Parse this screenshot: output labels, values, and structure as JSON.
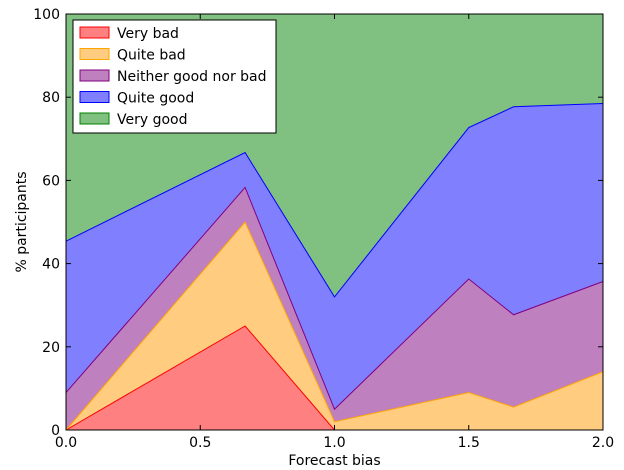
{
  "chart_data": {
    "type": "area",
    "stacked": true,
    "title": "",
    "xlabel": "Forecast bias",
    "ylabel": "% participants",
    "xlim": [
      0.0,
      2.0
    ],
    "ylim": [
      0,
      100
    ],
    "x": [
      0.0,
      0.667,
      1.0,
      1.5,
      1.667,
      2.0
    ],
    "xticks": [
      "0.0",
      "0.5",
      "1.0",
      "1.5",
      "2.0"
    ],
    "yticks": [
      "0",
      "20",
      "40",
      "60",
      "80",
      "100"
    ],
    "legend_position": "top-left",
    "series": [
      {
        "name": "Very bad",
        "color": "#ff8080",
        "edge": "#ff0000",
        "values": [
          0,
          25,
          0,
          0,
          0,
          0
        ]
      },
      {
        "name": "Quite bad",
        "color": "#ffcc80",
        "edge": "#ffa500",
        "values": [
          0,
          25,
          2,
          9,
          5.5,
          14
        ]
      },
      {
        "name": "Neither good nor bad",
        "color": "#bf80bf",
        "edge": "#800080",
        "values": [
          9,
          8.3,
          3,
          27.3,
          22.2,
          21.7
        ]
      },
      {
        "name": "Quite good",
        "color": "#8080ff",
        "edge": "#0000ff",
        "values": [
          36.4,
          8.4,
          27,
          36.4,
          50,
          42.8
        ]
      },
      {
        "name": "Very good",
        "color": "#80c080",
        "edge": "#008000",
        "values": [
          54.6,
          33.3,
          68,
          27.3,
          22.3,
          21.5
        ]
      }
    ]
  }
}
